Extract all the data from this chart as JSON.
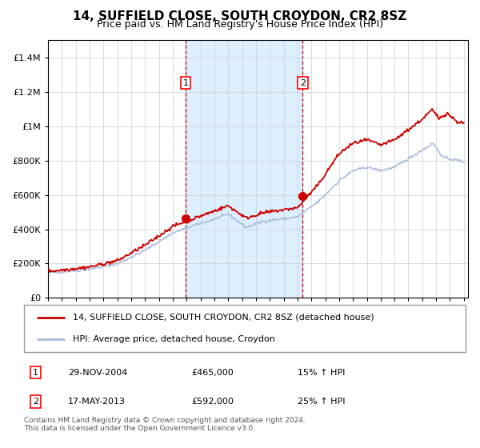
{
  "title": "14, SUFFIELD CLOSE, SOUTH CROYDON, CR2 8SZ",
  "subtitle": "Price paid vs. HM Land Registry's House Price Index (HPI)",
  "hpi_color": "#aabbdd",
  "price_color": "#cc0000",
  "shade_color": "#ddeeff",
  "dashed_line_color": "#cc0000",
  "transaction1_date": "29-NOV-2004",
  "transaction1_price": 465000,
  "transaction1_hpi": "15% ↑ HPI",
  "transaction1_year": 2004.92,
  "transaction2_date": "17-MAY-2013",
  "transaction2_price": 592000,
  "transaction2_year": 2013.38,
  "transaction2_hpi": "25% ↑ HPI",
  "legend_property": "14, SUFFIELD CLOSE, SOUTH CROYDON, CR2 8SZ (detached house)",
  "legend_hpi": "HPI: Average price, detached house, Croydon",
  "footer": "Contains HM Land Registry data © Crown copyright and database right 2024.\nThis data is licensed under the Open Government Licence v3.0.",
  "ylim_max": 1500000,
  "background_color": "#ffffff",
  "grid_color": "#cccccc",
  "yticks": [
    0,
    200000,
    400000,
    600000,
    800000,
    1000000,
    1200000,
    1400000
  ],
  "ytick_labels": [
    "£0",
    "£200K",
    "£400K",
    "£600K",
    "£800K",
    "£1M",
    "£1.2M",
    "£1.4M"
  ]
}
